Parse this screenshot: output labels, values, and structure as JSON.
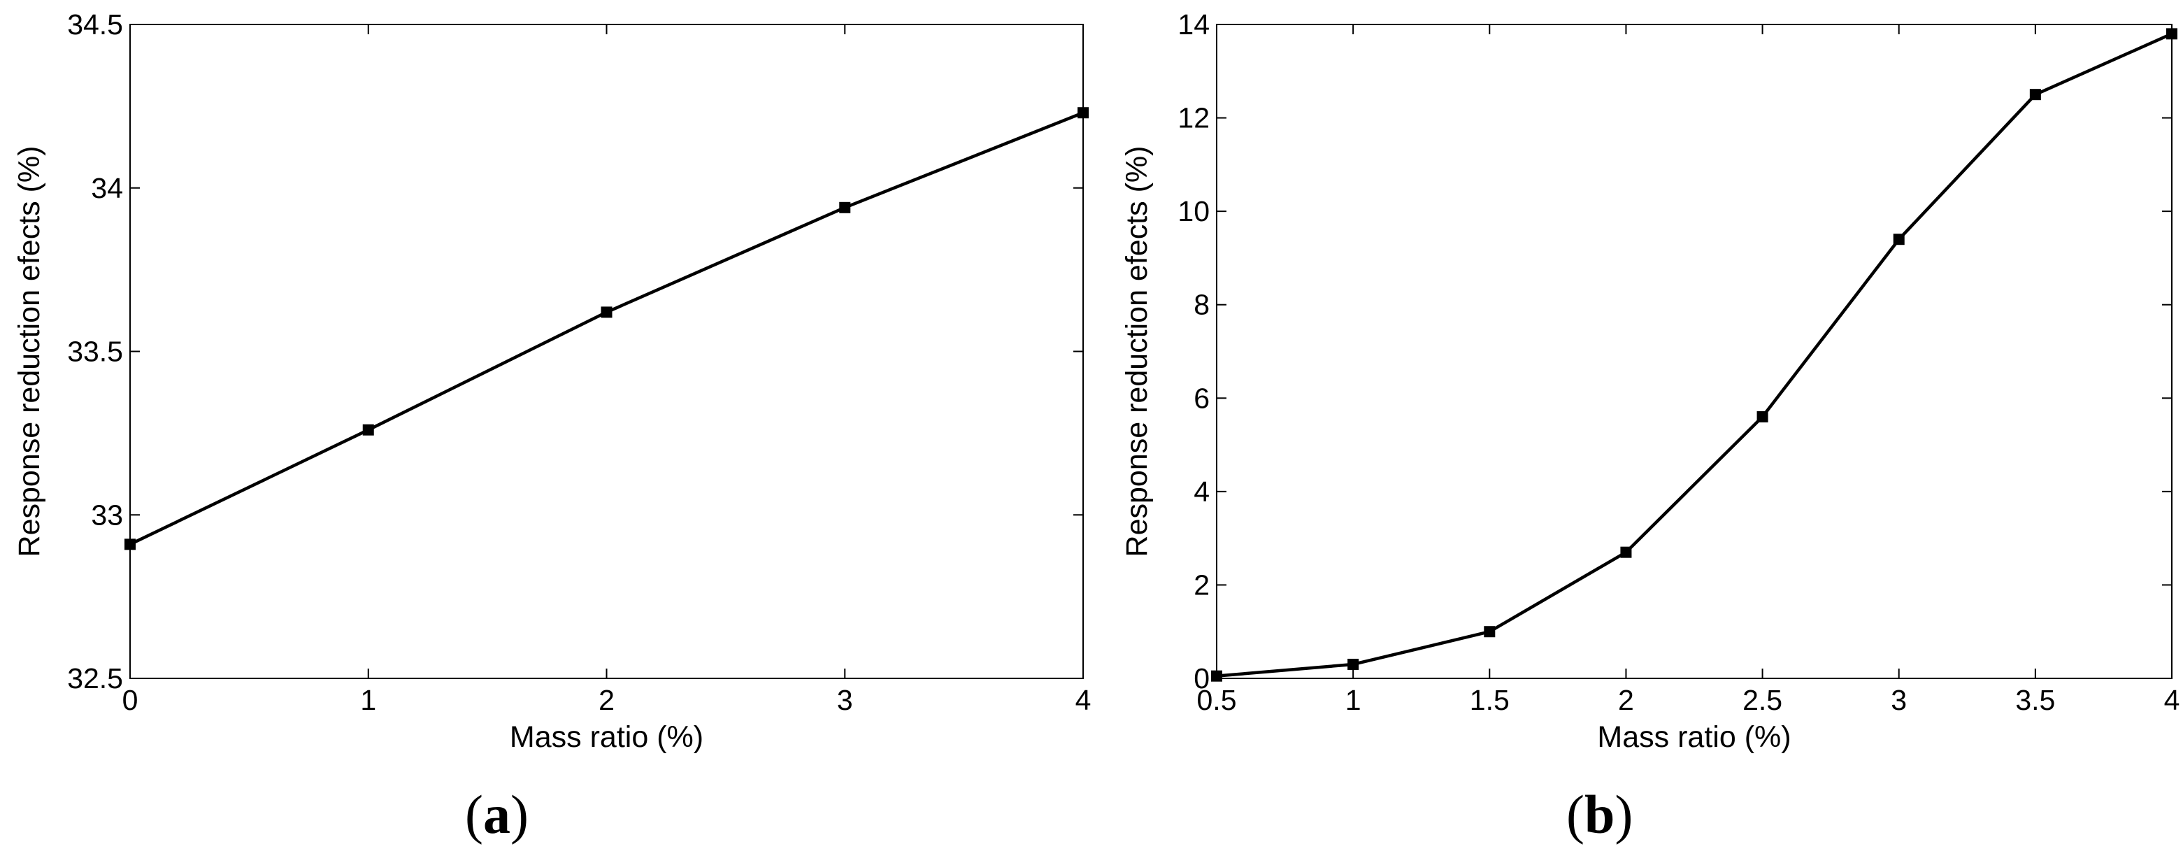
{
  "chart_data": [
    {
      "type": "line",
      "panel_label": "a",
      "xlabel": "Mass ratio (%)",
      "ylabel": "Response reduction efects  (%)",
      "xlim": [
        0,
        4
      ],
      "ylim": [
        32.5,
        34.5
      ],
      "xticks": [
        "0",
        "1",
        "2",
        "3",
        "4"
      ],
      "yticks": [
        "32.5",
        "33",
        "33.5",
        "34",
        "34.5"
      ],
      "grid": false,
      "marker": "square",
      "series": [
        {
          "x": [
            0,
            1,
            2,
            3,
            4
          ],
          "y": [
            32.91,
            33.26,
            33.62,
            33.94,
            34.23
          ]
        }
      ]
    },
    {
      "type": "line",
      "panel_label": "b",
      "xlabel": "Mass ratio (%)",
      "ylabel": "Response reduction efects  (%)",
      "xlim": [
        0.5,
        4
      ],
      "ylim": [
        0,
        14
      ],
      "xticks": [
        "0.5",
        "1",
        "1.5",
        "2",
        "2.5",
        "3",
        "3.5",
        "4"
      ],
      "yticks": [
        "0",
        "2",
        "4",
        "6",
        "8",
        "10",
        "12",
        "14"
      ],
      "grid": false,
      "marker": "square",
      "series": [
        {
          "x": [
            0.5,
            1,
            1.5,
            2,
            2.5,
            3,
            3.5,
            4
          ],
          "y": [
            0.05,
            0.3,
            1.0,
            2.7,
            5.6,
            9.4,
            12.5,
            13.8
          ]
        }
      ]
    }
  ]
}
